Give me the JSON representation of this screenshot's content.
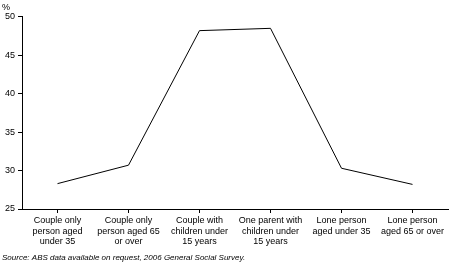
{
  "chart_data": {
    "type": "line",
    "y_label": "%",
    "source": "Source: ABS data available on request, 2006 General Social Survey.",
    "categories": [
      "Couple only person aged under 35",
      "Couple only person aged 65 or over",
      "Couple with children under 15 years",
      "One parent with children under 15 years",
      "Lone person aged under 35",
      "Lone person aged 65 or over"
    ],
    "values": [
      28.3,
      30.7,
      48.2,
      48.5,
      30.3,
      28.2
    ],
    "color": "#000000",
    "marker": "none",
    "ylim": [
      25,
      50
    ],
    "yticks": [
      25,
      30,
      35,
      40,
      45,
      50
    ],
    "grid": false
  }
}
